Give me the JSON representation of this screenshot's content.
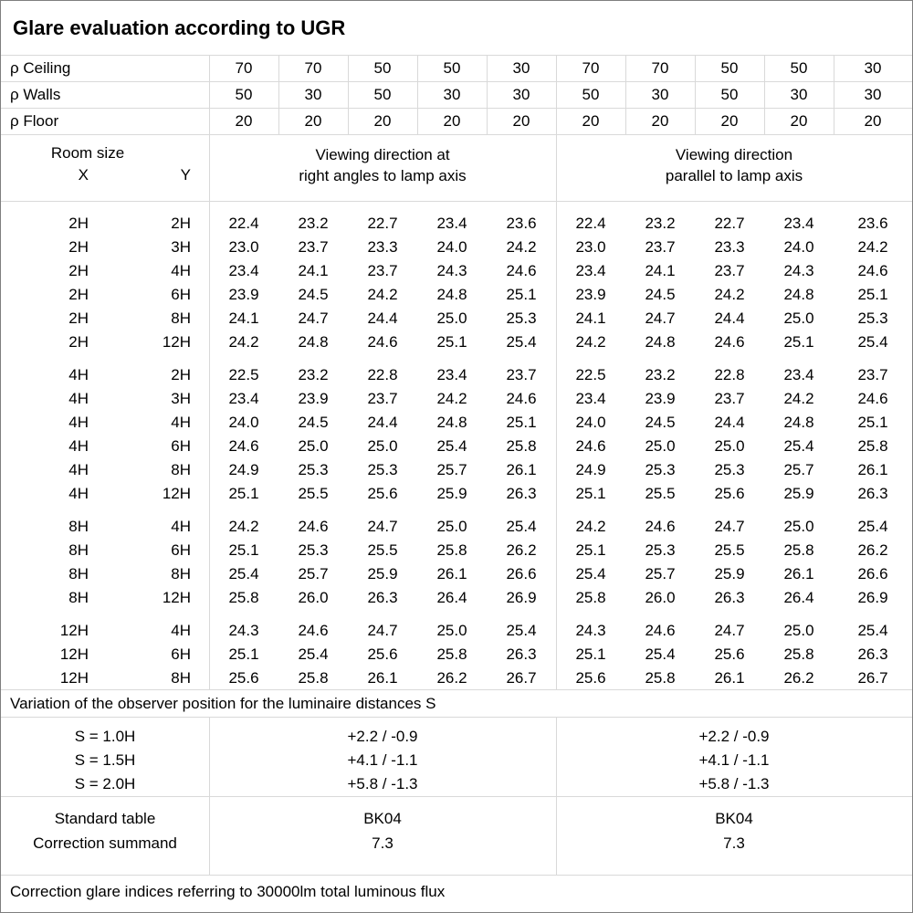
{
  "title": "Glare evaluation according to UGR",
  "colors": {
    "grid_line": "#d9d9d9",
    "outer_border": "#7f7f7f",
    "text": "#000000",
    "background": "#ffffff"
  },
  "reflectance_rows": [
    {
      "label": "ρ Ceiling",
      "values": [
        "70",
        "70",
        "50",
        "50",
        "30",
        "70",
        "70",
        "50",
        "50",
        "30"
      ]
    },
    {
      "label": "ρ Walls",
      "values": [
        "50",
        "30",
        "50",
        "30",
        "30",
        "50",
        "30",
        "50",
        "30",
        "30"
      ]
    },
    {
      "label": "ρ Floor",
      "values": [
        "20",
        "20",
        "20",
        "20",
        "20",
        "20",
        "20",
        "20",
        "20",
        "20"
      ]
    }
  ],
  "room_size_header": {
    "title": "Room size",
    "x": "X",
    "y": "Y"
  },
  "viewing_direction_headers": {
    "left": "Viewing direction at\nright angles to lamp axis",
    "right": "Viewing direction\nparallel to lamp axis"
  },
  "ugr_table": {
    "blocks": [
      {
        "rows": [
          {
            "x": "2H",
            "y": "2H",
            "left": [
              "22.4",
              "23.2",
              "22.7",
              "23.4",
              "23.6"
            ],
            "right": [
              "22.4",
              "23.2",
              "22.7",
              "23.4",
              "23.6"
            ]
          },
          {
            "x": "2H",
            "y": "3H",
            "left": [
              "23.0",
              "23.7",
              "23.3",
              "24.0",
              "24.2"
            ],
            "right": [
              "23.0",
              "23.7",
              "23.3",
              "24.0",
              "24.2"
            ]
          },
          {
            "x": "2H",
            "y": "4H",
            "left": [
              "23.4",
              "24.1",
              "23.7",
              "24.3",
              "24.6"
            ],
            "right": [
              "23.4",
              "24.1",
              "23.7",
              "24.3",
              "24.6"
            ]
          },
          {
            "x": "2H",
            "y": "6H",
            "left": [
              "23.9",
              "24.5",
              "24.2",
              "24.8",
              "25.1"
            ],
            "right": [
              "23.9",
              "24.5",
              "24.2",
              "24.8",
              "25.1"
            ]
          },
          {
            "x": "2H",
            "y": "8H",
            "left": [
              "24.1",
              "24.7",
              "24.4",
              "25.0",
              "25.3"
            ],
            "right": [
              "24.1",
              "24.7",
              "24.4",
              "25.0",
              "25.3"
            ]
          },
          {
            "x": "2H",
            "y": "12H",
            "left": [
              "24.2",
              "24.8",
              "24.6",
              "25.1",
              "25.4"
            ],
            "right": [
              "24.2",
              "24.8",
              "24.6",
              "25.1",
              "25.4"
            ]
          }
        ]
      },
      {
        "rows": [
          {
            "x": "4H",
            "y": "2H",
            "left": [
              "22.5",
              "23.2",
              "22.8",
              "23.4",
              "23.7"
            ],
            "right": [
              "22.5",
              "23.2",
              "22.8",
              "23.4",
              "23.7"
            ]
          },
          {
            "x": "4H",
            "y": "3H",
            "left": [
              "23.4",
              "23.9",
              "23.7",
              "24.2",
              "24.6"
            ],
            "right": [
              "23.4",
              "23.9",
              "23.7",
              "24.2",
              "24.6"
            ]
          },
          {
            "x": "4H",
            "y": "4H",
            "left": [
              "24.0",
              "24.5",
              "24.4",
              "24.8",
              "25.1"
            ],
            "right": [
              "24.0",
              "24.5",
              "24.4",
              "24.8",
              "25.1"
            ]
          },
          {
            "x": "4H",
            "y": "6H",
            "left": [
              "24.6",
              "25.0",
              "25.0",
              "25.4",
              "25.8"
            ],
            "right": [
              "24.6",
              "25.0",
              "25.0",
              "25.4",
              "25.8"
            ]
          },
          {
            "x": "4H",
            "y": "8H",
            "left": [
              "24.9",
              "25.3",
              "25.3",
              "25.7",
              "26.1"
            ],
            "right": [
              "24.9",
              "25.3",
              "25.3",
              "25.7",
              "26.1"
            ]
          },
          {
            "x": "4H",
            "y": "12H",
            "left": [
              "25.1",
              "25.5",
              "25.6",
              "25.9",
              "26.3"
            ],
            "right": [
              "25.1",
              "25.5",
              "25.6",
              "25.9",
              "26.3"
            ]
          }
        ]
      },
      {
        "rows": [
          {
            "x": "8H",
            "y": "4H",
            "left": [
              "24.2",
              "24.6",
              "24.7",
              "25.0",
              "25.4"
            ],
            "right": [
              "24.2",
              "24.6",
              "24.7",
              "25.0",
              "25.4"
            ]
          },
          {
            "x": "8H",
            "y": "6H",
            "left": [
              "25.1",
              "25.3",
              "25.5",
              "25.8",
              "26.2"
            ],
            "right": [
              "25.1",
              "25.3",
              "25.5",
              "25.8",
              "26.2"
            ]
          },
          {
            "x": "8H",
            "y": "8H",
            "left": [
              "25.4",
              "25.7",
              "25.9",
              "26.1",
              "26.6"
            ],
            "right": [
              "25.4",
              "25.7",
              "25.9",
              "26.1",
              "26.6"
            ]
          },
          {
            "x": "8H",
            "y": "12H",
            "left": [
              "25.8",
              "26.0",
              "26.3",
              "26.4",
              "26.9"
            ],
            "right": [
              "25.8",
              "26.0",
              "26.3",
              "26.4",
              "26.9"
            ]
          }
        ]
      },
      {
        "rows": [
          {
            "x": "12H",
            "y": "4H",
            "left": [
              "24.3",
              "24.6",
              "24.7",
              "25.0",
              "25.4"
            ],
            "right": [
              "24.3",
              "24.6",
              "24.7",
              "25.0",
              "25.4"
            ]
          },
          {
            "x": "12H",
            "y": "6H",
            "left": [
              "25.1",
              "25.4",
              "25.6",
              "25.8",
              "26.3"
            ],
            "right": [
              "25.1",
              "25.4",
              "25.6",
              "25.8",
              "26.3"
            ]
          },
          {
            "x": "12H",
            "y": "8H",
            "left": [
              "25.6",
              "25.8",
              "26.1",
              "26.2",
              "26.7"
            ],
            "right": [
              "25.6",
              "25.8",
              "26.1",
              "26.2",
              "26.7"
            ]
          }
        ]
      }
    ]
  },
  "observer_variation": {
    "note": "Variation of the observer position for the luminaire distances S",
    "rows": [
      {
        "label": "S = 1.0H",
        "left": "+2.2 / -0.9",
        "right": "+2.2 / -0.9"
      },
      {
        "label": "S = 1.5H",
        "left": "+4.1 / -1.1",
        "right": "+4.1 / -1.1"
      },
      {
        "label": "S = 2.0H",
        "left": "+5.8 / -1.3",
        "right": "+5.8 / -1.3"
      }
    ]
  },
  "standard_info": {
    "rows": [
      {
        "label": "Standard table",
        "left": "BK04",
        "right": "BK04"
      },
      {
        "label": "Correction summand",
        "left": "7.3",
        "right": "7.3"
      }
    ]
  },
  "footer": "Correction glare indices referring to 30000lm total luminous flux"
}
